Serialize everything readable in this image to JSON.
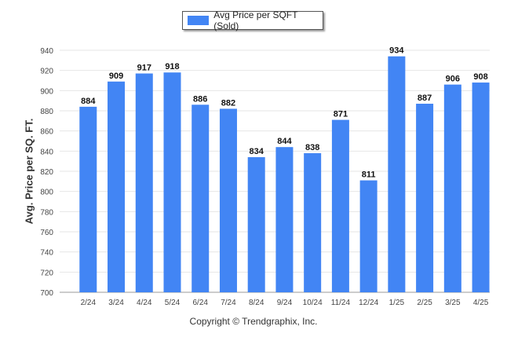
{
  "chart_data": {
    "type": "bar",
    "ylabel": "Avg. Price per SQ. FT.",
    "xlabel": "",
    "ylim": [
      700,
      940
    ],
    "yticks": [
      700,
      720,
      740,
      760,
      780,
      800,
      820,
      840,
      860,
      880,
      900,
      920,
      940
    ],
    "grid": true,
    "legend_placement": "top-center",
    "categories": [
      "2/24",
      "3/24",
      "4/24",
      "5/24",
      "6/24",
      "7/24",
      "8/24",
      "9/24",
      "10/24",
      "11/24",
      "12/24",
      "1/25",
      "2/25",
      "3/25",
      "4/25"
    ],
    "series": [
      {
        "name": "Avg Price per SQFT (Sold)",
        "color": "#4285f4",
        "values": [
          884,
          909,
          917,
          918,
          886,
          882,
          834,
          844,
          838,
          871,
          811,
          934,
          887,
          906,
          908
        ]
      }
    ]
  },
  "footer": {
    "copyright": "Copyright © Trendgraphix, Inc."
  }
}
